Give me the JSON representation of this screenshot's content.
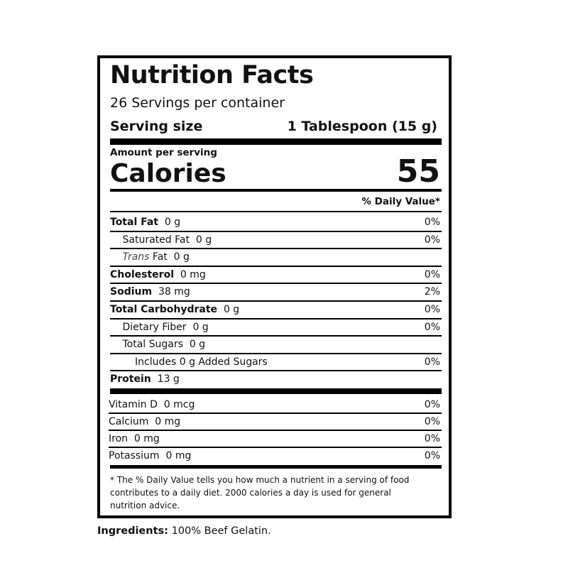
{
  "label": {
    "title": "Nutrition Facts",
    "servings": "26 Servings per container",
    "serving_size": {
      "label": "Serving size",
      "value": "1 Tablespoon (15 g)"
    },
    "amount_per_serving": "Amount per serving",
    "calories": {
      "label": "Calories",
      "value": "55"
    },
    "daily_value_header": "% Daily Value*",
    "nutrients": [
      {
        "name": "Total Fat",
        "amount": "0 g",
        "dv": "0%",
        "bold": true,
        "indent": 0
      },
      {
        "name": "Saturated Fat",
        "amount": "0 g",
        "dv": "0%",
        "bold": false,
        "indent": 1
      },
      {
        "italic": "Trans",
        "name": "Fat",
        "amount": "0 g",
        "bold": false,
        "indent": 1
      },
      {
        "name": "Cholesterol",
        "amount": "0 mg",
        "dv": "0%",
        "bold": true,
        "indent": 0
      },
      {
        "name": "Sodium",
        "amount": "38 mg",
        "dv": "2%",
        "bold": true,
        "indent": 0
      },
      {
        "name": "Total Carbohydrate",
        "amount": "0 g",
        "dv": "0%",
        "bold": true,
        "indent": 0
      },
      {
        "name": "Dietary Fiber",
        "amount": "0 g",
        "dv": "0%",
        "bold": false,
        "indent": 1
      },
      {
        "name": "Total Sugars",
        "amount": "0 g",
        "bold": false,
        "indent": 1
      },
      {
        "name": "Includes 0 g Added Sugars",
        "dv": "0%",
        "bold": false,
        "indent": 2
      },
      {
        "name": "Protein",
        "amount": "13 g",
        "bold": true,
        "indent": 0
      }
    ],
    "vitamins": [
      {
        "name": "Vitamin D",
        "amount": "0 mcg",
        "dv": "0%"
      },
      {
        "name": "Calcium",
        "amount": "0 mg",
        "dv": "0%"
      },
      {
        "name": "Iron",
        "amount": "0 mg",
        "dv": "0%"
      },
      {
        "name": "Potassium",
        "amount": "0 mg",
        "dv": "0%"
      }
    ],
    "footnote": [
      "* The % Daily Value tells you how much a nutrient in a serving of food",
      "contributes to a daily diet. 2000 calories a day is used for general",
      "nutrition advice."
    ],
    "ingredients": {
      "label": "Ingredients:",
      "text": "100% Beef Gelatin."
    }
  }
}
